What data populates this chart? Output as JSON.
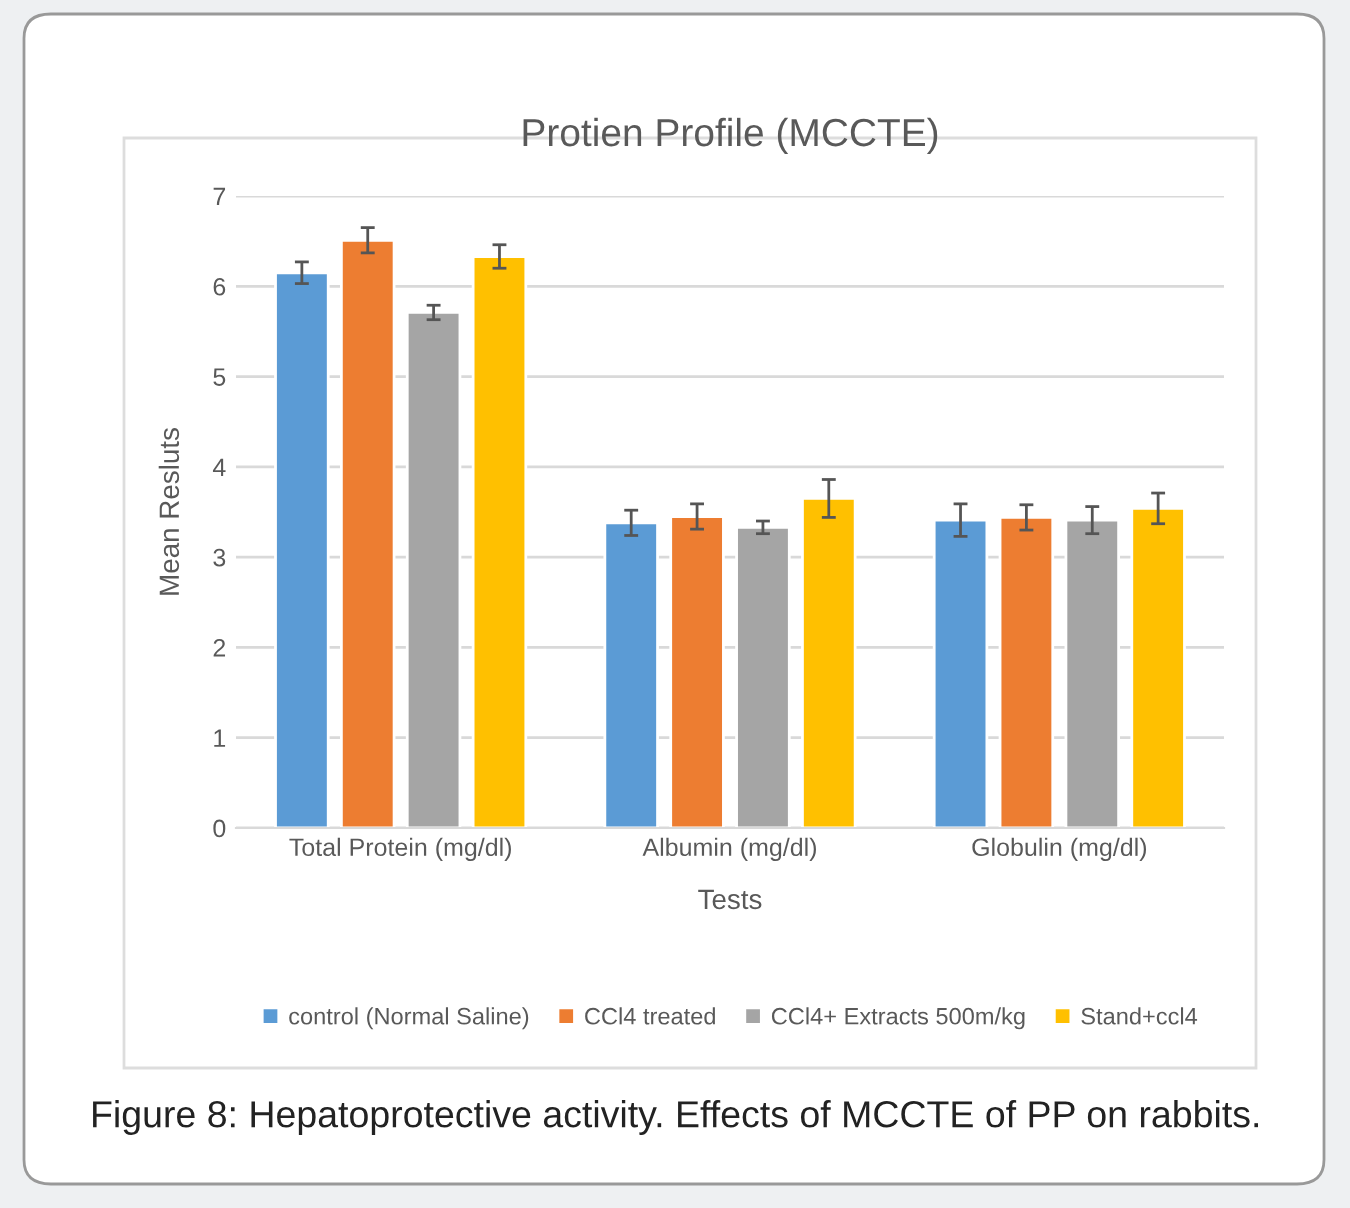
{
  "chart_data": {
    "type": "bar",
    "title": "Protien Profile (MCCTE)",
    "xlabel": "Tests",
    "ylabel": "Mean Resluts",
    "categories": [
      "Total Protein (mg/dl)",
      "Albumin (mg/dl)",
      "Globulin (mg/dl)"
    ],
    "series": [
      {
        "name": "control (Normal Saline)",
        "color": "#5b9bd5",
        "values": [
          6.15,
          3.38,
          3.41
        ],
        "errors": [
          0.12,
          0.14,
          0.18
        ]
      },
      {
        "name": "CCl4 treated",
        "color": "#ed7d31",
        "values": [
          6.51,
          3.45,
          3.44
        ],
        "errors": [
          0.14,
          0.14,
          0.14
        ]
      },
      {
        "name": "CCl4+ Extracts 500m/kg",
        "color": "#a5a5a5",
        "values": [
          5.71,
          3.33,
          3.41
        ],
        "errors": [
          0.08,
          0.07,
          0.15
        ]
      },
      {
        "name": "Stand+ccl4",
        "color": "#ffc000",
        "values": [
          6.33,
          3.65,
          3.54
        ],
        "errors": [
          0.13,
          0.21,
          0.17
        ]
      }
    ],
    "ylim": [
      0,
      7
    ],
    "yticks": [
      0,
      1,
      2,
      3,
      4,
      5,
      6,
      7
    ],
    "grid": "y",
    "legend": "bottom",
    "annotations": [
      "Figure 8: Hepatoprotective activity. Effects of MCCTE of PP on rabbits."
    ]
  }
}
